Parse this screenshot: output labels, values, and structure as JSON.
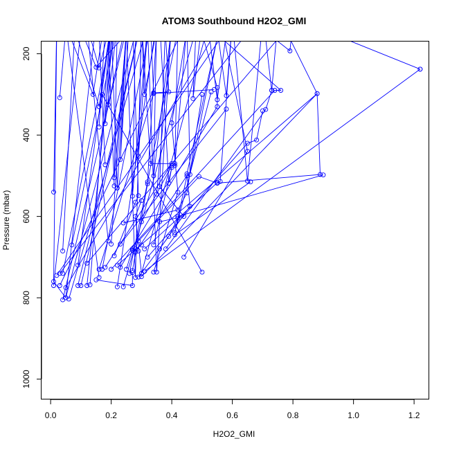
{
  "chart_data": {
    "type": "line",
    "title": "ATOM3 Southbound H2O2_GMI",
    "xlabel": "H2O2_GMI",
    "ylabel": "Pressure (mbar)",
    "xlim": [
      -0.03,
      1.25
    ],
    "ylim": [
      1050,
      170
    ],
    "y_reversed": true,
    "grid": false,
    "line_color": "#0000ff",
    "marker": "open-circle",
    "x_ticks": [
      0.0,
      0.2,
      0.4,
      0.6,
      0.8,
      1.0,
      1.2
    ],
    "x_tick_labels": [
      "0.0",
      "0.2",
      "0.4",
      "0.6",
      "0.8",
      "1.0",
      "1.2"
    ],
    "y_ticks": [
      200,
      400,
      600,
      800,
      1000
    ],
    "y_tick_labels": [
      "200",
      "400",
      "600",
      "800",
      "1000"
    ],
    "series": [
      {
        "points": [
          [
            0.02,
            150
          ],
          [
            0.01,
            760
          ],
          [
            0.05,
            800
          ],
          [
            0.15,
            120
          ]
        ]
      },
      {
        "points": [
          [
            0.04,
            805
          ],
          [
            0.25,
            140
          ],
          [
            0.28,
            750
          ],
          [
            0.3,
            120
          ]
        ]
      },
      {
        "points": [
          [
            0.06,
            803
          ],
          [
            0.32,
            130
          ],
          [
            0.35,
            737
          ],
          [
            0.4,
            110
          ]
        ]
      },
      {
        "points": [
          [
            0.03,
            770
          ],
          [
            0.45,
            120
          ],
          [
            0.46,
            497
          ],
          [
            0.55,
            160
          ]
        ]
      },
      {
        "points": [
          [
            0.05,
            775
          ],
          [
            0.55,
            140
          ],
          [
            0.58,
            303
          ],
          [
            0.6,
            120
          ]
        ]
      },
      {
        "points": [
          [
            0.02,
            745
          ],
          [
            0.6,
            120
          ],
          [
            0.65,
            513
          ],
          [
            0.7,
            120
          ]
        ]
      },
      {
        "points": [
          [
            0.03,
            740
          ],
          [
            0.7,
            100
          ],
          [
            0.73,
            290
          ],
          [
            0.75,
            120
          ]
        ]
      },
      {
        "points": [
          [
            0.01,
            770
          ],
          [
            0.1,
            140
          ],
          [
            0.15,
            233
          ],
          [
            0.3,
            110
          ]
        ]
      },
      {
        "points": [
          [
            0.03,
            308
          ],
          [
            0.05,
            140
          ]
        ]
      },
      {
        "points": [
          [
            0.01,
            540
          ],
          [
            0.02,
            130
          ]
        ]
      },
      {
        "points": [
          [
            0.04,
            740
          ],
          [
            0.2,
            150
          ],
          [
            0.19,
            325
          ],
          [
            0.25,
            120
          ]
        ]
      },
      {
        "points": [
          [
            0.13,
            768
          ],
          [
            0.2,
            110
          ],
          [
            0.18,
            372
          ],
          [
            0.22,
            130
          ]
        ]
      },
      {
        "points": [
          [
            0.09,
            770
          ],
          [
            0.3,
            120
          ],
          [
            0.31,
            300
          ],
          [
            0.35,
            140
          ]
        ]
      },
      {
        "points": [
          [
            0.05,
            800
          ],
          [
            0.28,
            150
          ],
          [
            0.27,
            550
          ],
          [
            0.32,
            130
          ]
        ]
      },
      {
        "points": [
          [
            0.12,
            715
          ],
          [
            0.8,
            120
          ],
          [
            0.79,
            193
          ],
          [
            0.7,
            140
          ]
        ]
      },
      {
        "points": [
          [
            0.04,
            685
          ],
          [
            0.08,
            140
          ],
          [
            0.16,
            330
          ],
          [
            0.2,
            120
          ]
        ]
      },
      {
        "points": [
          [
            0.07,
            670
          ],
          [
            0.22,
            130
          ],
          [
            0.21,
            505
          ],
          [
            0.25,
            150
          ]
        ]
      },
      {
        "points": [
          [
            0.16,
            750
          ],
          [
            0.05,
            130
          ],
          [
            0.14,
            300
          ],
          [
            0.18,
            110
          ]
        ]
      },
      {
        "points": [
          [
            0.22,
            773
          ],
          [
            0.35,
            120
          ],
          [
            0.34,
            500
          ],
          [
            0.4,
            130
          ]
        ]
      },
      {
        "points": [
          [
            0.24,
            773
          ],
          [
            0.48,
            140
          ],
          [
            0.47,
            310
          ],
          [
            0.5,
            120
          ]
        ]
      },
      {
        "points": [
          [
            0.3,
            740
          ],
          [
            0.52,
            130
          ],
          [
            0.55,
            313
          ],
          [
            0.58,
            150
          ]
        ]
      },
      {
        "points": [
          [
            0.26,
            740
          ],
          [
            0.42,
            140
          ],
          [
            0.41,
            475
          ],
          [
            0.45,
            130
          ]
        ]
      },
      {
        "points": [
          [
            0.3,
            748
          ],
          [
            0.88,
            298
          ],
          [
            0.89,
            497
          ],
          [
            0.55,
            518
          ]
        ]
      },
      {
        "points": [
          [
            0.2,
            730
          ],
          [
            0.74,
            290
          ],
          [
            0.76,
            290
          ],
          [
            0.5,
            120
          ]
        ]
      },
      {
        "points": [
          [
            0.32,
            700
          ],
          [
            0.65,
            420
          ],
          [
            0.68,
            412
          ],
          [
            0.7,
            340
          ]
        ]
      },
      {
        "points": [
          [
            0.18,
            725
          ],
          [
            0.4,
            470
          ],
          [
            0.33,
            470
          ],
          [
            0.3,
            120
          ]
        ]
      },
      {
        "points": [
          [
            0.23,
            725
          ],
          [
            0.55,
            330
          ],
          [
            0.55,
            283
          ],
          [
            0.5,
            150
          ]
        ]
      },
      {
        "points": [
          [
            0.28,
            688
          ],
          [
            0.45,
            500
          ],
          [
            0.41,
            640
          ],
          [
            0.53,
            294
          ]
        ]
      },
      {
        "points": [
          [
            0.34,
            737
          ],
          [
            0.42,
            540
          ],
          [
            0.4,
            370
          ],
          [
            0.45,
            140
          ]
        ]
      },
      {
        "points": [
          [
            0.36,
            680
          ],
          [
            0.46,
            575
          ],
          [
            0.45,
            495
          ],
          [
            0.55,
            160
          ]
        ]
      },
      {
        "points": [
          [
            0.31,
            680
          ],
          [
            0.55,
            517
          ],
          [
            0.56,
            514
          ],
          [
            0.6,
            120
          ]
        ]
      },
      {
        "points": [
          [
            0.36,
            613
          ],
          [
            0.44,
            600
          ],
          [
            0.36,
            527
          ],
          [
            0.38,
            110
          ]
        ]
      },
      {
        "points": [
          [
            0.35,
            545
          ],
          [
            0.4,
            130
          ]
        ]
      },
      {
        "points": [
          [
            0.24,
            616
          ],
          [
            0.42,
            584
          ],
          [
            0.45,
            542
          ],
          [
            0.5,
            300
          ]
        ]
      },
      {
        "points": [
          [
            0.27,
            733
          ],
          [
            0.32,
            520
          ],
          [
            0.32,
            515
          ],
          [
            0.35,
            140
          ]
        ]
      },
      {
        "points": [
          [
            0.19,
            660
          ],
          [
            0.12,
            130
          ],
          [
            0.16,
            235
          ],
          [
            0.2,
            120
          ]
        ]
      },
      {
        "points": [
          [
            0.2,
            668
          ],
          [
            0.25,
            140
          ],
          [
            0.23,
            460
          ],
          [
            0.26,
            120
          ]
        ]
      },
      {
        "points": [
          [
            0.09,
            720
          ],
          [
            0.2,
            130
          ],
          [
            0.22,
            530
          ],
          [
            0.25,
            150
          ]
        ]
      },
      {
        "points": [
          [
            0.1,
            770
          ],
          [
            0.3,
            120
          ],
          [
            0.29,
            452
          ],
          [
            0.32,
            140
          ]
        ]
      },
      {
        "points": [
          [
            0.17,
            730
          ],
          [
            0.33,
            130
          ],
          [
            0.34,
            298
          ],
          [
            0.54,
            288
          ]
        ]
      },
      {
        "points": [
          [
            0.16,
            380
          ],
          [
            0.18,
            140
          ]
        ]
      },
      {
        "points": [
          [
            0.12,
            770
          ],
          [
            0.21,
            130
          ],
          [
            0.16,
            150
          ]
        ]
      },
      {
        "points": [
          [
            0.5,
            737
          ],
          [
            0.17,
            300
          ]
        ]
      },
      {
        "points": [
          [
            1.22,
            238
          ],
          [
            0.86,
            130
          ]
        ]
      },
      {
        "points": [
          [
            0.31,
            735
          ],
          [
            1.22,
            238
          ]
        ]
      },
      {
        "points": [
          [
            0.22,
            720
          ],
          [
            0.88,
            298
          ],
          [
            0.77,
            133
          ]
        ]
      },
      {
        "points": [
          [
            0.38,
            680
          ],
          [
            0.71,
            337
          ],
          [
            0.73,
            290
          ]
        ]
      },
      {
        "points": [
          [
            0.18,
            473
          ],
          [
            0.16,
            150
          ]
        ]
      },
      {
        "points": [
          [
            0.21,
            525
          ],
          [
            0.19,
            140
          ]
        ]
      },
      {
        "points": [
          [
            0.42,
            600
          ],
          [
            0.9,
            498
          ]
        ]
      },
      {
        "points": [
          [
            0.44,
            700
          ],
          [
            0.65,
            440
          ],
          [
            0.57,
            150
          ]
        ]
      },
      {
        "points": [
          [
            0.23,
            668
          ],
          [
            0.58,
            336
          ]
        ]
      },
      {
        "points": [
          [
            0.41,
            645
          ],
          [
            0.66,
            515
          ]
        ]
      },
      {
        "points": [
          [
            0.29,
            660
          ],
          [
            0.49,
            502
          ],
          [
            0.55,
            518
          ]
        ]
      },
      {
        "points": [
          [
            0.16,
            730
          ],
          [
            0.34,
            296
          ],
          [
            0.39,
            294
          ],
          [
            0.38,
            160
          ]
        ]
      },
      {
        "points": [
          [
            0.34,
            670
          ],
          [
            0.4,
            480
          ],
          [
            0.39,
            518
          ],
          [
            0.36,
            120
          ]
        ]
      },
      {
        "points": [
          [
            0.3,
            613
          ],
          [
            0.4,
            475
          ],
          [
            0.41,
            470
          ]
        ]
      },
      {
        "points": [
          [
            0.21,
            697
          ],
          [
            0.28,
            565
          ],
          [
            0.29,
            549
          ],
          [
            0.27,
            110
          ]
        ]
      },
      {
        "points": [
          [
            0.27,
            683
          ],
          [
            0.28,
            680
          ],
          [
            0.3,
            670
          ]
        ]
      },
      {
        "points": [
          [
            0.29,
            749
          ],
          [
            0.39,
            649
          ],
          [
            0.42,
            604
          ]
        ]
      },
      {
        "points": [
          [
            0.25,
            730
          ],
          [
            0.27,
            680
          ],
          [
            0.29,
            685
          ]
        ]
      },
      {
        "points": [
          [
            0.15,
            756
          ],
          [
            0.27,
            770
          ],
          [
            0.27,
            738
          ]
        ]
      },
      {
        "points": [
          [
            0.3,
            740
          ],
          [
            0.28,
            600
          ],
          [
            0.3,
            561
          ]
        ]
      }
    ]
  }
}
